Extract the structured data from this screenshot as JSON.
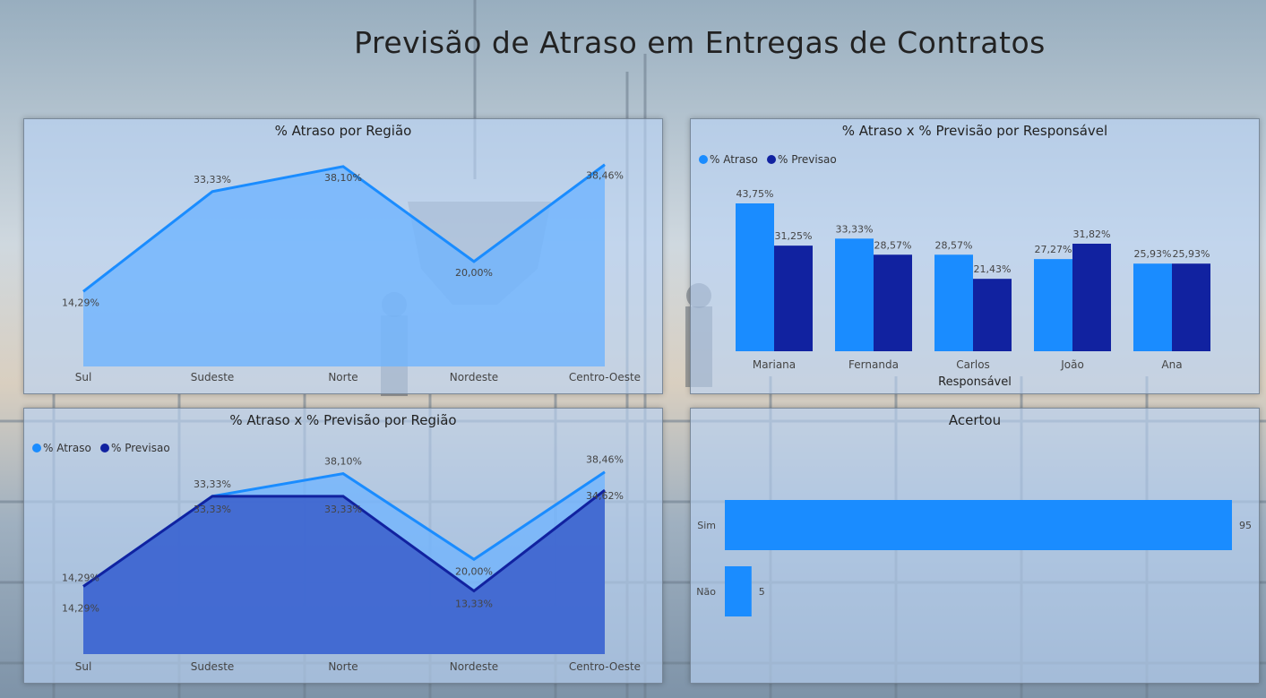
{
  "page": {
    "title": "Previsão de Atraso em Entregas de Contratos"
  },
  "colors": {
    "atraso": "#1a8cff",
    "previsao": "#1122a0",
    "area_light": "#6db3ff",
    "area_dark": "#3a5ecb"
  },
  "chart_data": [
    {
      "id": "atraso-regiao",
      "type": "area",
      "title": "% Atraso por Região",
      "categories": [
        "Sul",
        "Sudeste",
        "Norte",
        "Nordeste",
        "Centro-Oeste"
      ],
      "series": [
        {
          "values": [
            14.29,
            33.33,
            38.1,
            20.0,
            38.46
          ],
          "labels": [
            "14,29%",
            "33,33%",
            "38,10%",
            "20,00%",
            "38,46%"
          ]
        }
      ]
    },
    {
      "id": "atraso-previsao-responsavel",
      "type": "bar",
      "title": "% Atraso x % Previsão por Responsável",
      "xlabel": "Responsável",
      "legend": "top-left",
      "categories": [
        "Mariana",
        "Fernanda",
        "Carlos",
        "João",
        "Ana"
      ],
      "series": [
        {
          "name": "% Atraso",
          "values": [
            43.75,
            33.33,
            28.57,
            27.27,
            25.93
          ],
          "labels": [
            "43,75%",
            "33,33%",
            "28,57%",
            "27,27%",
            "25,93%"
          ]
        },
        {
          "name": "% Previsao",
          "values": [
            31.25,
            28.57,
            21.43,
            31.82,
            25.93
          ],
          "labels": [
            "31,25%",
            "28,57%",
            "21,43%",
            "31,82%",
            "25,93%"
          ]
        }
      ]
    },
    {
      "id": "atraso-previsao-regiao",
      "type": "area",
      "title": "% Atraso x % Previsão por Região",
      "legend": "top-left",
      "categories": [
        "Sul",
        "Sudeste",
        "Norte",
        "Nordeste",
        "Centro-Oeste"
      ],
      "series": [
        {
          "name": "% Atraso",
          "values": [
            14.29,
            33.33,
            38.1,
            20.0,
            38.46
          ],
          "labels": [
            "14,29%",
            "33,33%",
            "38,10%",
            "20,00%",
            "38,46%"
          ]
        },
        {
          "name": "% Previsao",
          "values": [
            14.29,
            33.33,
            33.33,
            13.33,
            34.62
          ],
          "labels": [
            "14,29%",
            "33,33%",
            "33,33%",
            "13,33%",
            "34,62%"
          ]
        }
      ]
    },
    {
      "id": "acertou",
      "type": "bar",
      "orientation": "horizontal",
      "title": "Acertou",
      "categories": [
        "Sim",
        "Não"
      ],
      "values": [
        95,
        5
      ],
      "labels": [
        "95",
        "5"
      ]
    }
  ]
}
